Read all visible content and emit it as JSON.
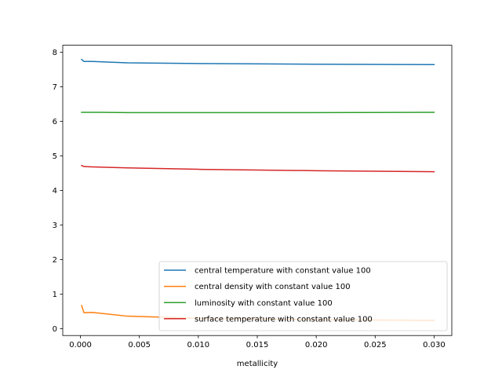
{
  "chart_data": {
    "type": "line",
    "title": "",
    "xlabel": "metallicity",
    "ylabel": "",
    "xlim": [
      -0.0015,
      0.0315
    ],
    "ylim": [
      -0.2,
      8.2
    ],
    "xticks": [
      0.0,
      0.005,
      0.01,
      0.015,
      0.02,
      0.025,
      0.03
    ],
    "xtick_labels": [
      "0.000",
      "0.005",
      "0.010",
      "0.015",
      "0.020",
      "0.025",
      "0.030"
    ],
    "yticks": [
      0,
      1,
      2,
      3,
      4,
      5,
      6,
      7,
      8
    ],
    "ytick_labels": [
      "0",
      "1",
      "2",
      "3",
      "4",
      "5",
      "6",
      "7",
      "8"
    ],
    "grid": false,
    "legend_position": "lower-right",
    "series": [
      {
        "name": "central temperature with constant value 100",
        "color": "#1f77b4",
        "x": [
          0.0001,
          0.0003,
          0.001,
          0.004,
          0.01,
          0.02,
          0.03
        ],
        "y": [
          7.79,
          7.73,
          7.73,
          7.69,
          7.67,
          7.65,
          7.64
        ]
      },
      {
        "name": "central density with constant value 100",
        "color": "#ff7f0e",
        "x": [
          0.0001,
          0.0003,
          0.001,
          0.004,
          0.01,
          0.02,
          0.03
        ],
        "y": [
          0.67,
          0.46,
          0.47,
          0.36,
          0.3,
          0.26,
          0.24
        ]
      },
      {
        "name": "luminosity with constant value 100",
        "color": "#2ca02c",
        "x": [
          0.0001,
          0.0003,
          0.001,
          0.004,
          0.01,
          0.02,
          0.03
        ],
        "y": [
          6.26,
          6.26,
          6.26,
          6.25,
          6.25,
          6.25,
          6.26
        ]
      },
      {
        "name": "surface temperature with constant value 100",
        "color": "#d62728",
        "x": [
          0.0001,
          0.0003,
          0.001,
          0.004,
          0.01,
          0.02,
          0.03
        ],
        "y": [
          4.72,
          4.69,
          4.68,
          4.65,
          4.61,
          4.57,
          4.54
        ]
      }
    ]
  }
}
